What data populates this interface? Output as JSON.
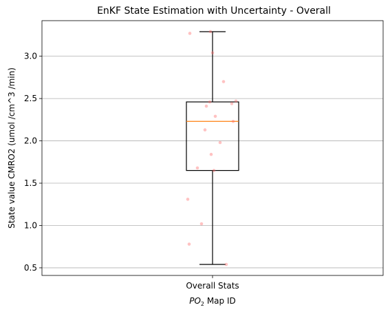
{
  "chart_data": {
    "type": "box",
    "title": "EnKF State Estimation with Uncertainty - Overall",
    "xlabel_main": "PO",
    "xlabel_sub": "2",
    "xlabel_rest": " Map ID",
    "ylabel": "State value CMRO2 (umol /cm^3 /min)",
    "categories": [
      "Overall Stats"
    ],
    "ylim": [
      0.41,
      3.42
    ],
    "yticks": [
      0.5,
      1.0,
      1.5,
      2.0,
      2.5,
      3.0
    ],
    "ytick_labels": [
      "0.5",
      "1.0",
      "1.5",
      "2.0",
      "2.5",
      "3.0"
    ],
    "grid_y": true,
    "box": {
      "whisker_low": 0.54,
      "q1": 1.65,
      "median": 2.23,
      "q3": 2.46,
      "whisker_high": 3.29
    },
    "points": [
      {
        "jitter": -0.33,
        "y": 3.27
      },
      {
        "jitter": -0.03,
        "y": 3.29
      },
      {
        "jitter": 0.0,
        "y": 3.04
      },
      {
        "jitter": 0.16,
        "y": 2.7
      },
      {
        "jitter": 0.28,
        "y": 2.44
      },
      {
        "jitter": 0.34,
        "y": 2.47
      },
      {
        "jitter": -0.04,
        "y": 2.46
      },
      {
        "jitter": -0.09,
        "y": 2.41
      },
      {
        "jitter": 0.04,
        "y": 2.29
      },
      {
        "jitter": 0.3,
        "y": 2.23
      },
      {
        "jitter": -0.11,
        "y": 2.13
      },
      {
        "jitter": 0.11,
        "y": 1.98
      },
      {
        "jitter": -0.02,
        "y": 1.84
      },
      {
        "jitter": -0.22,
        "y": 1.68
      },
      {
        "jitter": 0.02,
        "y": 1.65
      },
      {
        "jitter": -0.36,
        "y": 1.31
      },
      {
        "jitter": -0.16,
        "y": 1.02
      },
      {
        "jitter": -0.34,
        "y": 0.78
      },
      {
        "jitter": 0.2,
        "y": 0.54
      }
    ],
    "colors": {
      "box": "#000000",
      "median": "#ff7f0e",
      "points": "#ff6666",
      "grid": "#b0b0b0"
    }
  }
}
